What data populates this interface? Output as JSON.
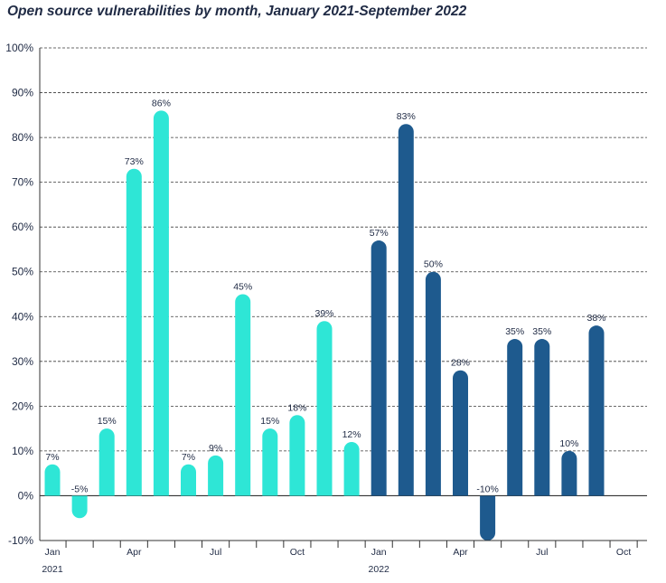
{
  "chart_data": {
    "type": "bar",
    "title": "Open source vulnerabilities by month, January 2021-September 2022",
    "xlabel": "",
    "ylabel": "",
    "ylim": [
      -10,
      100
    ],
    "yticks": [
      -10,
      0,
      10,
      20,
      30,
      40,
      50,
      60,
      70,
      80,
      90,
      100
    ],
    "ytick_labels": [
      "-10%",
      "0%",
      "10%",
      "20%",
      "30%",
      "40%",
      "50%",
      "60%",
      "70%",
      "80%",
      "90%",
      "100%"
    ],
    "grid": "horizontal dashed",
    "categories": [
      "Jan 2021",
      "Feb 2021",
      "Mar 2021",
      "Apr 2021",
      "May 2021",
      "Jun 2021",
      "Jul 2021",
      "Aug 2021",
      "Sep 2021",
      "Oct 2021",
      "Nov 2021",
      "Dec 2021",
      "Jan 2022",
      "Feb 2022",
      "Mar 2022",
      "Apr 2022",
      "May 2022",
      "Jun 2022",
      "Jul 2022",
      "Aug 2022",
      "Sep 2022"
    ],
    "values": [
      7,
      -5,
      15,
      73,
      86,
      7,
      9,
      45,
      15,
      18,
      39,
      12,
      57,
      83,
      50,
      28,
      -10,
      35,
      35,
      10,
      38
    ],
    "data_labels": [
      "7%",
      "-5%",
      "15%",
      "73%",
      "86%",
      "7%",
      "9%",
      "45%",
      "15%",
      "18%",
      "39%",
      "12%",
      "57%",
      "83%",
      "50%",
      "28%",
      "-10%",
      "35%",
      "35%",
      "10%",
      "38%"
    ],
    "bar_colors": [
      "#2ee6d6",
      "#2ee6d6",
      "#2ee6d6",
      "#2ee6d6",
      "#2ee6d6",
      "#2ee6d6",
      "#2ee6d6",
      "#2ee6d6",
      "#2ee6d6",
      "#2ee6d6",
      "#2ee6d6",
      "#2ee6d6",
      "#1e5a8e",
      "#1e5a8e",
      "#1e5a8e",
      "#1e5a8e",
      "#1e5a8e",
      "#1e5a8e",
      "#1e5a8e",
      "#1e5a8e",
      "#1e5a8e"
    ],
    "x_tick_labels": [
      {
        "slot": 0,
        "text": "Jan"
      },
      {
        "slot": 3,
        "text": "Apr"
      },
      {
        "slot": 6,
        "text": "Jul"
      },
      {
        "slot": 9,
        "text": "Oct"
      },
      {
        "slot": 12,
        "text": "Jan"
      },
      {
        "slot": 15,
        "text": "Apr"
      },
      {
        "slot": 18,
        "text": "Jul"
      },
      {
        "slot": 21,
        "text": "Oct"
      }
    ],
    "year_labels": [
      {
        "slot": 0,
        "text": "2021"
      },
      {
        "slot": 12,
        "text": "2022"
      }
    ],
    "colors": {
      "series_2021": "#2ee6d6",
      "series_2022": "#1e5a8e",
      "text": "#1f2a44",
      "grid": "#3a3a3a"
    }
  }
}
